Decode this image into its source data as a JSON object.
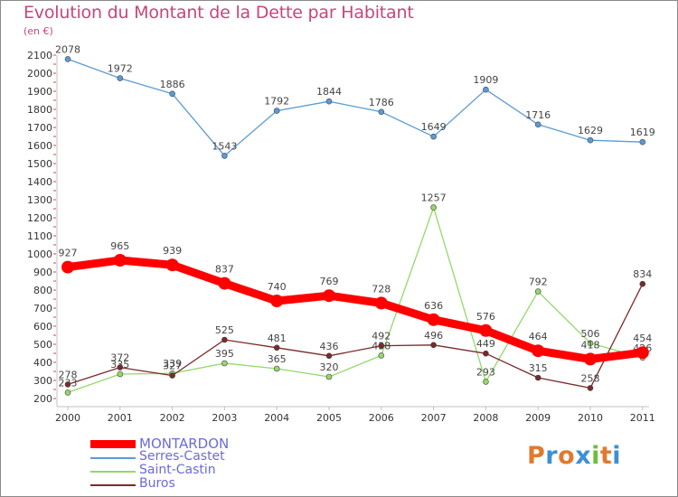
{
  "title": "Evolution du Montant de la Dette par Habitant",
  "subtitle": "(en €)",
  "logo": {
    "letters": [
      "P",
      "r",
      "o",
      "x",
      "i",
      "t",
      "i"
    ],
    "colors": [
      "#e07a2e",
      "#3d8fd6",
      "#e07a2e",
      "#3d8fd6",
      "#6cbf3a",
      "#e07a2e",
      "#3d8fd6"
    ]
  },
  "chart_data": {
    "type": "line",
    "categories": [
      "2000",
      "2001",
      "2002",
      "2003",
      "2004",
      "2005",
      "2006",
      "2007",
      "2008",
      "2009",
      "2010",
      "2011"
    ],
    "ylim": [
      200,
      2100
    ],
    "yticks": [
      200,
      300,
      400,
      500,
      600,
      700,
      800,
      900,
      1000,
      1100,
      1200,
      1300,
      1400,
      1500,
      1600,
      1700,
      1800,
      1900,
      2000,
      2100
    ],
    "grid": false,
    "legend_position": "bottom-left",
    "series": [
      {
        "name": "Serres-Castet",
        "color": "#5b9bd5",
        "values": [
          2078,
          1972,
          1886,
          1543,
          1792,
          1844,
          1786,
          1649,
          1909,
          1716,
          1629,
          1619
        ]
      },
      {
        "name": "Saint-Castin",
        "color": "#94d86a",
        "values": [
          233,
          335,
          339,
          395,
          365,
          320,
          438,
          1257,
          293,
          792,
          506,
          426
        ]
      },
      {
        "name": "Buros",
        "color": "#7a2a2a",
        "values": [
          278,
          372,
          327,
          525,
          481,
          436,
          492,
          496,
          449,
          315,
          258,
          834
        ]
      },
      {
        "name": "MONTARDON",
        "color": "#ff0000",
        "values": [
          927,
          965,
          939,
          837,
          740,
          769,
          728,
          636,
          576,
          464,
          418,
          454
        ]
      }
    ]
  }
}
